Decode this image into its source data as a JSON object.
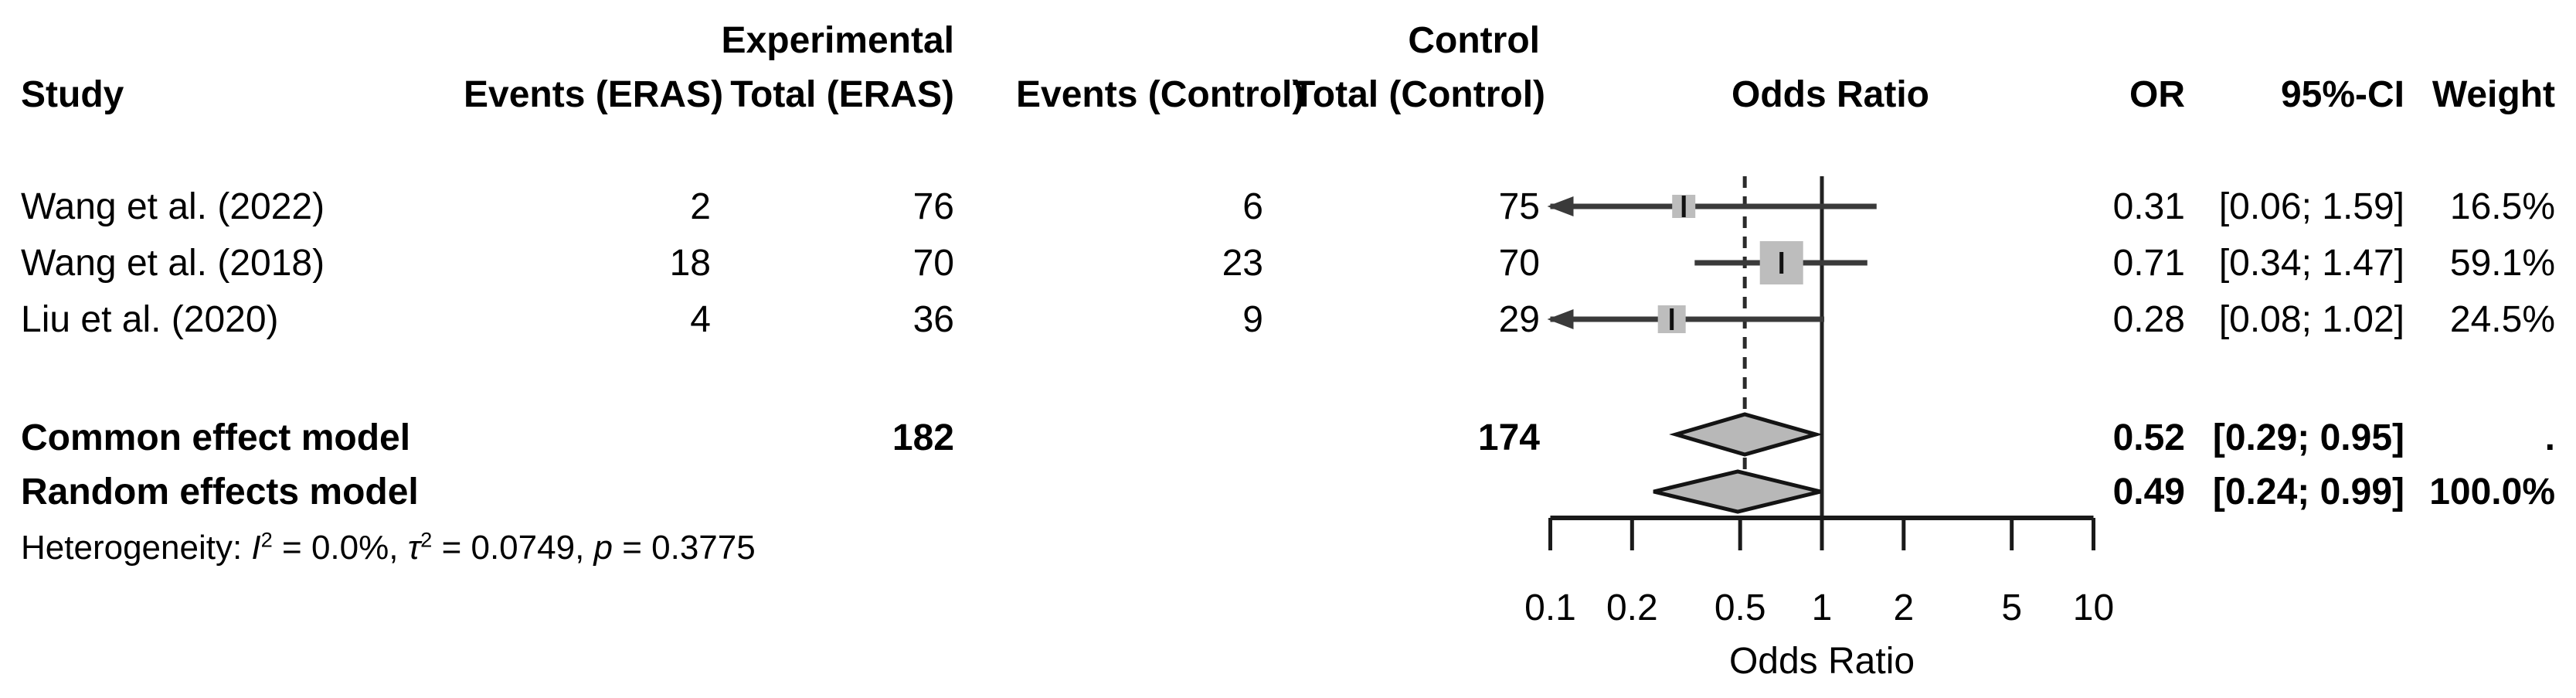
{
  "group_headers": {
    "experimental": "Experimental",
    "control": "Control"
  },
  "columns": {
    "study": "Study",
    "events_eras": "Events (ERAS)",
    "total_eras": "Total (ERAS)",
    "events_control": "Events (Control)",
    "total_control": "Total (Control)",
    "odds_ratio": "Odds Ratio",
    "or": "OR",
    "ci": "95%-CI",
    "weight": "Weight"
  },
  "studies": [
    {
      "study": "Wang et al. (2022)",
      "events_eras": "2",
      "total_eras": "76",
      "events_control": "6",
      "total_control": "75",
      "or": "0.31",
      "ci": "[0.06; 1.59]",
      "weight": "16.5%"
    },
    {
      "study": "Wang et al. (2018)",
      "events_eras": "18",
      "total_eras": "70",
      "events_control": "23",
      "total_control": "70",
      "or": "0.71",
      "ci": "[0.34; 1.47]",
      "weight": "59.1%"
    },
    {
      "study": "Liu et al. (2020)",
      "events_eras": "4",
      "total_eras": "36",
      "events_control": "9",
      "total_control": "29",
      "or": "0.28",
      "ci": "[0.08; 1.02]",
      "weight": "24.5%"
    }
  ],
  "summary_rows": [
    {
      "label": "Common effect model",
      "total_eras": "182",
      "total_control": "174",
      "or": "0.52",
      "ci": "[0.29; 0.95]",
      "weight": "."
    },
    {
      "label": "Random effects model",
      "or": "0.49",
      "ci": "[0.24; 0.99]",
      "weight": "100.0%"
    }
  ],
  "heterogeneity": {
    "prefix": "Heterogeneity: ",
    "i": "I",
    "i_sup": "2",
    "seg1": " = 0.0%, ",
    "tau": "τ",
    "tau_sup": "2",
    "seg2": " = 0.0749, ",
    "p": "p",
    "seg3": " = 0.3775"
  },
  "axis": {
    "label": "Odds Ratio"
  },
  "chart_data": {
    "type": "forest",
    "x_scale": "log",
    "xlabel": "Odds Ratio",
    "x_range": [
      0.1,
      10
    ],
    "x_ticks": [
      0.1,
      0.2,
      0.5,
      1,
      2,
      5,
      10
    ],
    "null_line": 1,
    "common_effect_reference_line": 0.52,
    "studies": [
      {
        "name": "Wang et al. (2022)",
        "or": 0.31,
        "ci": [
          0.06,
          1.59
        ],
        "weight_pct": 16.5,
        "ci_low_clipped": true
      },
      {
        "name": "Wang et al. (2018)",
        "or": 0.71,
        "ci": [
          0.34,
          1.47
        ],
        "weight_pct": 59.1,
        "ci_low_clipped": false
      },
      {
        "name": "Liu et al. (2020)",
        "or": 0.28,
        "ci": [
          0.08,
          1.02
        ],
        "weight_pct": 24.5,
        "ci_low_clipped": true
      }
    ],
    "summaries": [
      {
        "name": "Common effect model",
        "or": 0.52,
        "ci": [
          0.29,
          0.95
        ]
      },
      {
        "name": "Random effects model",
        "or": 0.49,
        "ci": [
          0.24,
          0.99
        ]
      }
    ],
    "legend": "none",
    "grid": false,
    "colors": {
      "square": "#bdbdbd",
      "diamond_fill": "#b8b8b8",
      "diamond_stroke": "#141414",
      "ci_line": "#3a3a3a",
      "axis": "#1a1a1a"
    }
  }
}
